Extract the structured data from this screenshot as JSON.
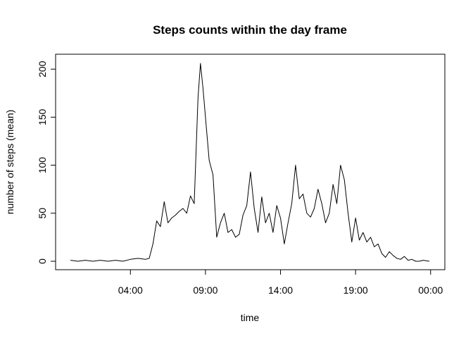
{
  "chart_data": {
    "type": "line",
    "title": "Steps counts within the day frame",
    "xlabel": "time",
    "ylabel": "number of steps (mean)",
    "x_ticks": [
      "04:00",
      "09:00",
      "14:00",
      "19:00",
      "00:00"
    ],
    "x_tick_hours": [
      4,
      9,
      14,
      19,
      24
    ],
    "y_ticks": [
      0,
      50,
      100,
      150,
      200
    ],
    "xlim": [
      "00:00",
      "23:55"
    ],
    "ylim": [
      0,
      206
    ],
    "grid": false,
    "legend": "none",
    "series": [
      {
        "color": "#000000",
        "x": [
          "00:00",
          "00:30",
          "01:00",
          "01:30",
          "02:00",
          "02:30",
          "03:00",
          "03:30",
          "04:00",
          "04:30",
          "05:00",
          "05:15",
          "05:30",
          "05:45",
          "06:00",
          "06:15",
          "06:30",
          "06:45",
          "07:00",
          "07:15",
          "07:30",
          "07:45",
          "08:00",
          "08:15",
          "08:30",
          "08:40",
          "08:50",
          "09:00",
          "09:15",
          "09:30",
          "09:45",
          "10:00",
          "10:15",
          "10:30",
          "10:45",
          "11:00",
          "11:15",
          "11:30",
          "11:45",
          "12:00",
          "12:15",
          "12:30",
          "12:45",
          "13:00",
          "13:15",
          "13:30",
          "13:45",
          "14:00",
          "14:15",
          "14:30",
          "14:45",
          "15:00",
          "15:15",
          "15:30",
          "15:45",
          "16:00",
          "16:15",
          "16:30",
          "16:45",
          "17:00",
          "17:15",
          "17:30",
          "17:45",
          "18:00",
          "18:15",
          "18:30",
          "18:45",
          "19:00",
          "19:15",
          "19:30",
          "19:45",
          "20:00",
          "20:15",
          "20:30",
          "20:45",
          "21:00",
          "21:15",
          "21:30",
          "21:45",
          "22:00",
          "22:15",
          "22:30",
          "22:45",
          "23:00",
          "23:15",
          "23:30",
          "23:55"
        ],
        "y": [
          1,
          0,
          1,
          0,
          1,
          0,
          1,
          0,
          2,
          3,
          2,
          3,
          18,
          42,
          36,
          62,
          40,
          45,
          48,
          52,
          55,
          50,
          68,
          60,
          170,
          206,
          180,
          150,
          105,
          90,
          25,
          40,
          50,
          30,
          33,
          25,
          28,
          48,
          58,
          93,
          55,
          30,
          67,
          40,
          50,
          30,
          58,
          45,
          18,
          40,
          60,
          100,
          65,
          70,
          50,
          46,
          55,
          75,
          60,
          40,
          50,
          80,
          60,
          100,
          85,
          50,
          20,
          45,
          22,
          30,
          20,
          25,
          15,
          18,
          8,
          4,
          10,
          6,
          3,
          2,
          5,
          1,
          2,
          0,
          0,
          1,
          0
        ]
      }
    ]
  }
}
